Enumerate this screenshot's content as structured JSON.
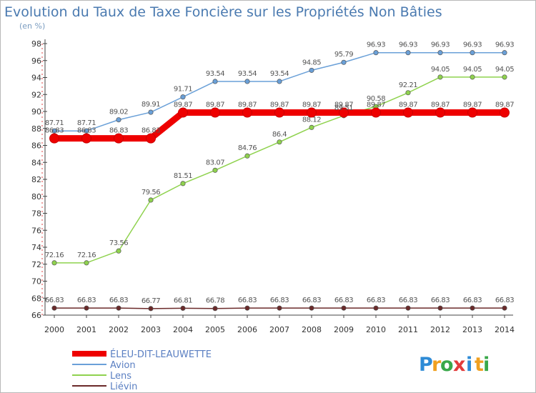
{
  "header": {
    "title": "Evolution du Taux de Taxe Foncière sur les Propriétés Non Bâties",
    "unit": "(en %)"
  },
  "brand": {
    "logo_letters": [
      "P",
      "r",
      "o",
      "x",
      "i",
      "t",
      "i"
    ],
    "logo_colors": [
      "#2e8bd6",
      "#f0a020",
      "#3aa84a",
      "#e23b3b",
      "#2e8bd6",
      "#f0a020",
      "#3aa84a"
    ]
  },
  "chart_data": {
    "type": "line",
    "x": [
      "2000",
      "2001",
      "2002",
      "2003",
      "2004",
      "2005",
      "2006",
      "2007",
      "2008",
      "2009",
      "2010",
      "2011",
      "2012",
      "2013",
      "2014"
    ],
    "ylim": [
      66,
      98
    ],
    "yticks": [
      "66",
      "68",
      "70",
      "72",
      "74",
      "76",
      "78",
      "80",
      "82",
      "84",
      "86",
      "88",
      "90",
      "92",
      "94",
      "96",
      "98"
    ],
    "grid": false,
    "legend": "bottom-left",
    "series": [
      {
        "name": "ÉLEU-DIT-LEAUWETTE",
        "color": "#ee0000",
        "values": [
          86.83,
          86.83,
          86.83,
          86.83,
          89.87,
          89.87,
          89.87,
          89.87,
          89.87,
          89.87,
          89.87,
          89.87,
          89.87,
          89.87,
          89.87
        ],
        "labels": [
          "86.83",
          "86.83",
          "86.83",
          "86.83",
          "89.87",
          "89.87",
          "89.87",
          "89.87",
          "89.87",
          "89.87",
          "89.87",
          "89.87",
          "89.87",
          "89.87",
          "89.87"
        ]
      },
      {
        "name": "Avion",
        "color": "#6aa0d8",
        "values": [
          87.71,
          87.71,
          89.02,
          89.91,
          91.71,
          93.54,
          93.54,
          93.54,
          94.85,
          95.79,
          96.93,
          96.93,
          96.93,
          96.93,
          96.93
        ],
        "labels": [
          "87.71",
          "87.71",
          "89.02",
          "89.91",
          "91.71",
          "93.54",
          "93.54",
          "93.54",
          "94.85",
          "95.79",
          "96.93",
          "96.93",
          "96.93",
          "96.93",
          "96.93"
        ]
      },
      {
        "name": "Lens",
        "color": "#8fd24e",
        "values": [
          72.16,
          72.16,
          73.56,
          79.56,
          81.51,
          83.07,
          84.76,
          86.4,
          88.12,
          89.51,
          90.58,
          92.21,
          94.05,
          94.05,
          94.05
        ],
        "labels": [
          "72.16",
          "72.16",
          "73.56",
          "79.56",
          "81.51",
          "83.07",
          "84.76",
          "86.4",
          "88.12",
          "89.51",
          "90.58",
          "92.21",
          "94.05",
          "94.05",
          "94.05"
        ]
      },
      {
        "name": "Liévin",
        "color": "#6b2a2a",
        "values": [
          66.83,
          66.83,
          66.83,
          66.77,
          66.81,
          66.78,
          66.83,
          66.83,
          66.83,
          66.83,
          66.83,
          66.83,
          66.83,
          66.83,
          66.83
        ],
        "labels": [
          "66.83",
          "66.83",
          "66.83",
          "66.77",
          "66.81",
          "66.78",
          "66.83",
          "66.83",
          "66.83",
          "66.83",
          "66.83",
          "66.83",
          "66.83",
          "66.83",
          "66.83"
        ]
      }
    ]
  }
}
